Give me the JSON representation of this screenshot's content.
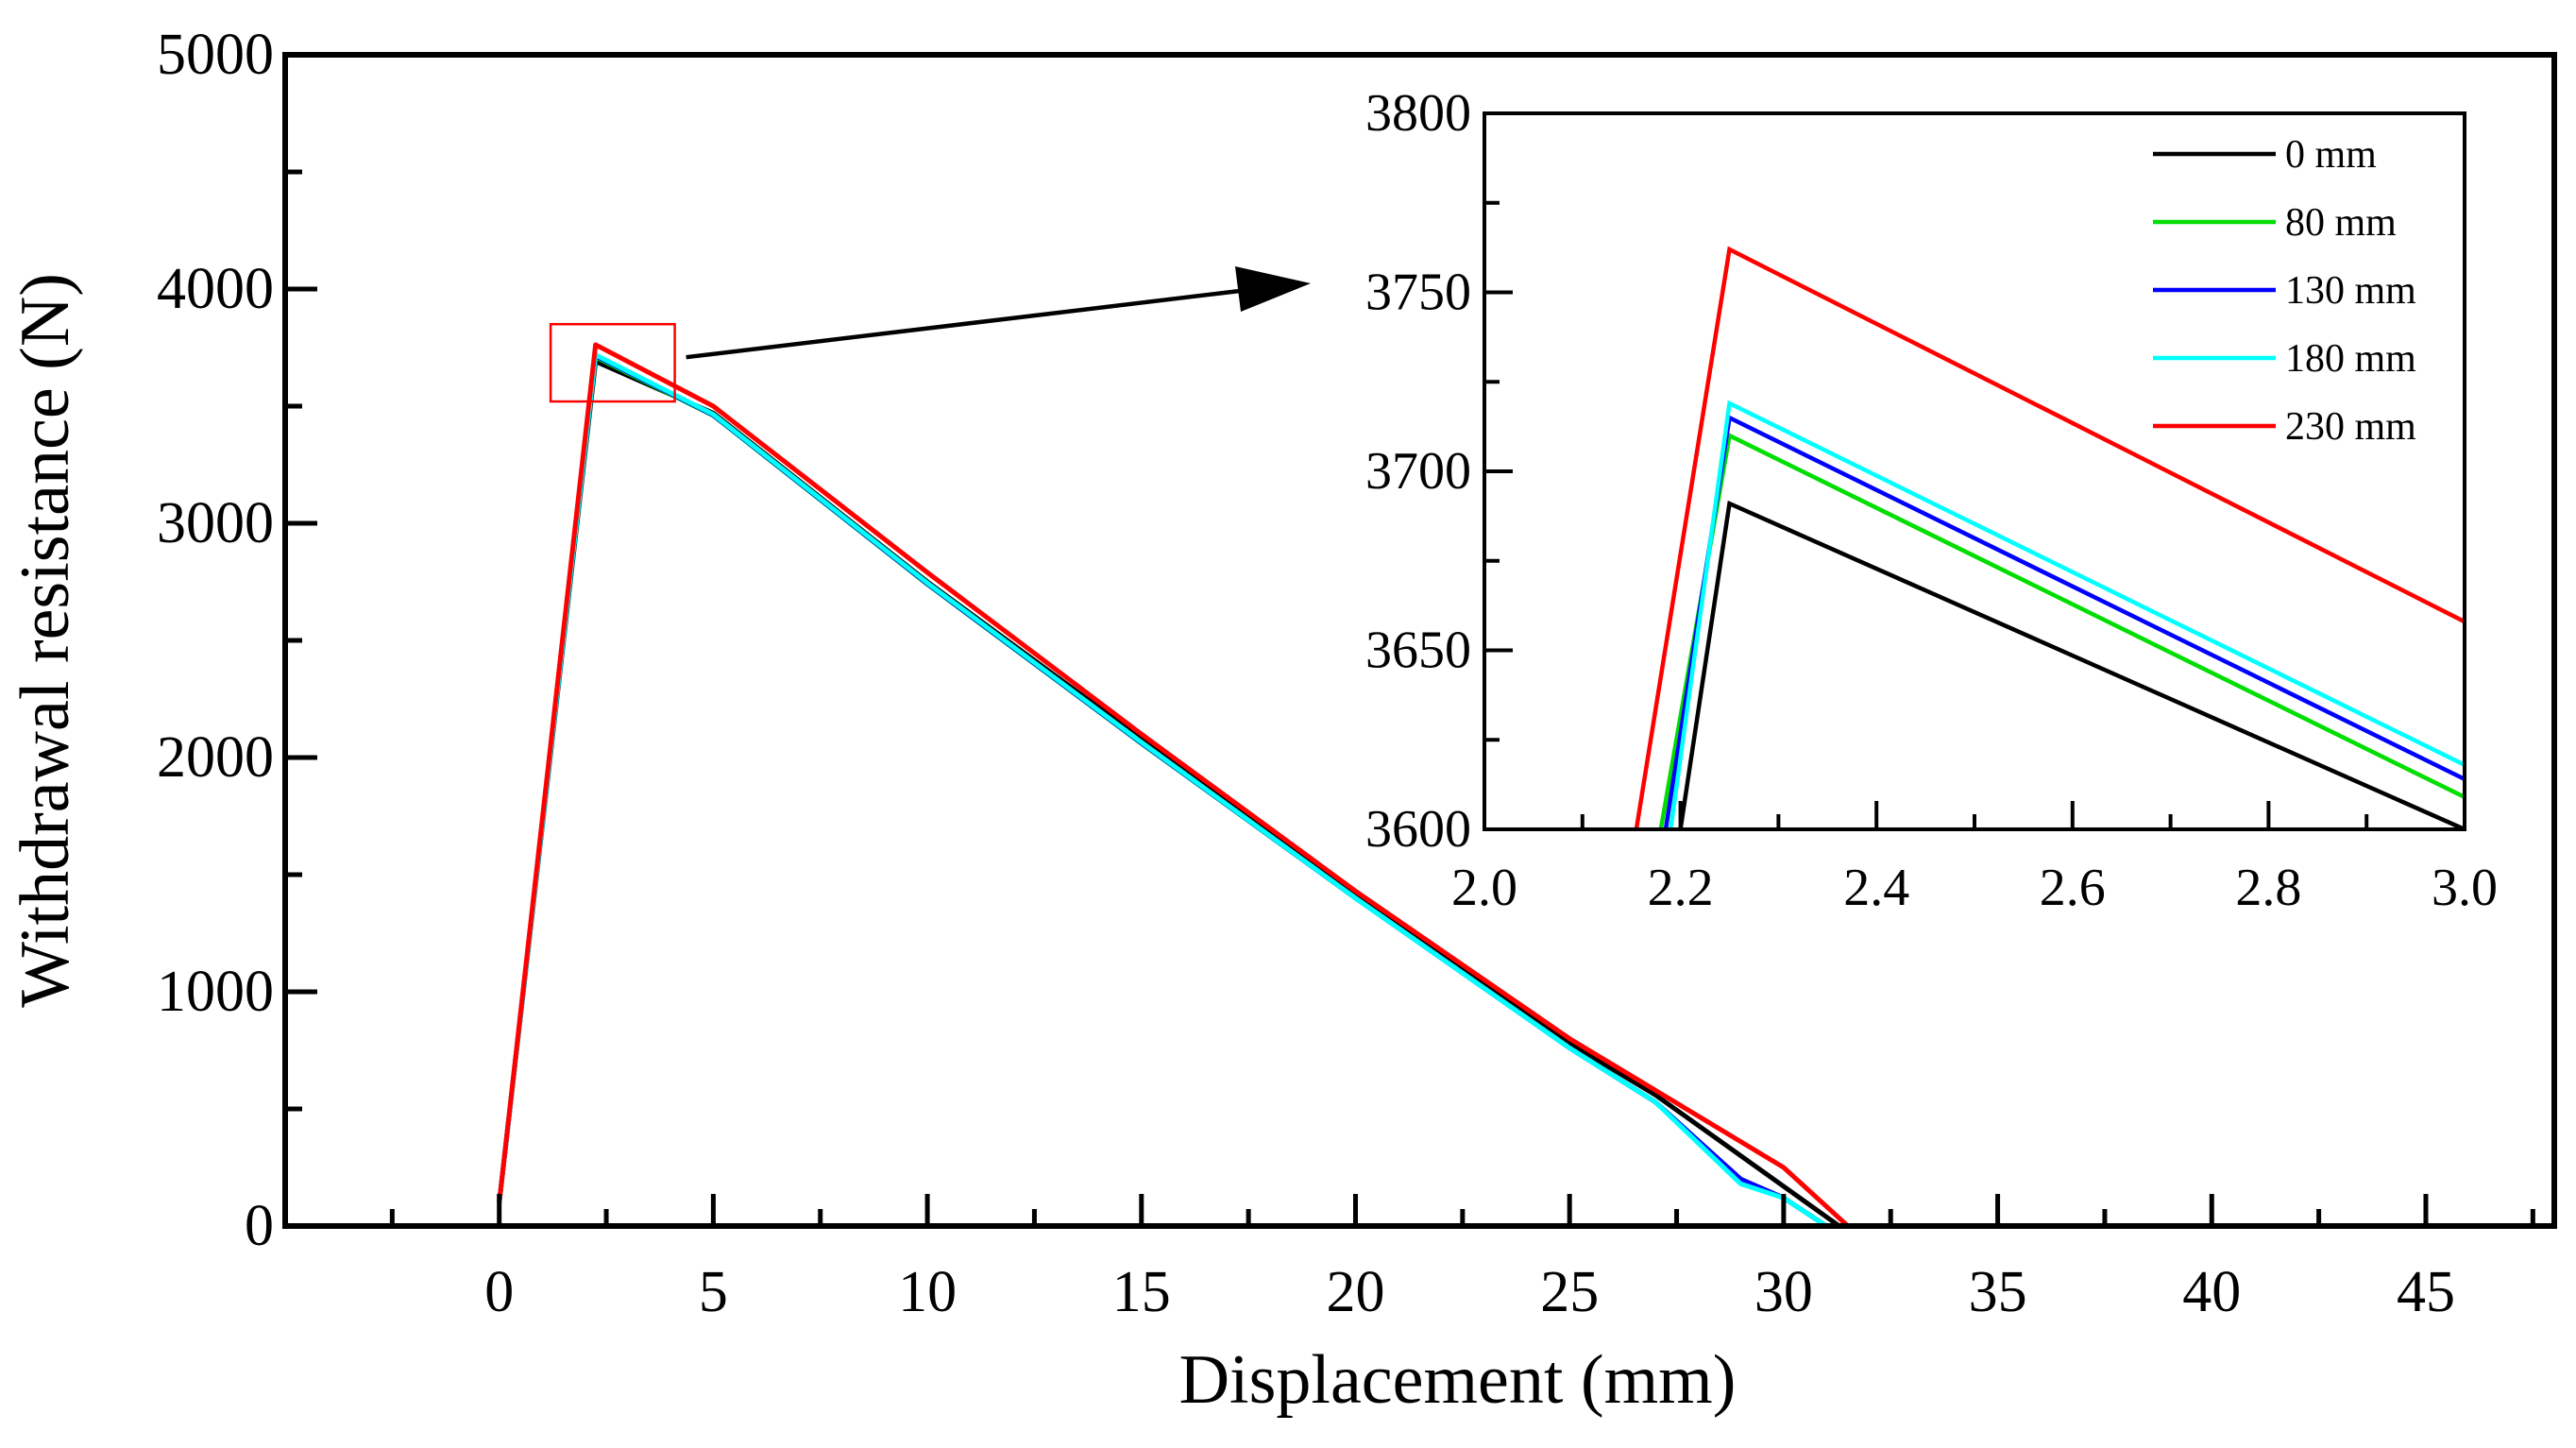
{
  "chart_data": [
    {
      "type": "line",
      "xlabel": "Displacement (mm)",
      "ylabel": "Withdrawal resistance (N)",
      "xlim": [
        -5,
        48
      ],
      "ylim": [
        0,
        5000
      ],
      "xticks": [
        0,
        5,
        10,
        15,
        20,
        25,
        30,
        35,
        40,
        45
      ],
      "yticks": [
        0,
        1000,
        2000,
        3000,
        4000,
        5000
      ],
      "series": [
        {
          "name": "0 mm",
          "color": "#000000",
          "x": [
            0,
            2.25,
            5,
            10,
            15,
            20,
            25,
            27,
            31.3
          ],
          "y": [
            100,
            3691,
            3470,
            2750,
            2080,
            1410,
            780,
            560,
            0
          ]
        },
        {
          "name": "80 mm",
          "color": "#00dd00",
          "x": [
            0,
            2.25,
            5,
            10,
            15,
            20,
            25,
            27,
            29,
            30,
            31
          ],
          "y": [
            100,
            3710,
            3460,
            2740,
            2060,
            1400,
            760,
            530,
            200,
            120,
            0
          ]
        },
        {
          "name": "130 mm",
          "color": "#0000ff",
          "x": [
            0,
            2.25,
            5,
            10,
            15,
            20,
            25,
            27,
            29,
            30,
            31
          ],
          "y": [
            100,
            3715,
            3462,
            2742,
            2062,
            1400,
            760,
            530,
            200,
            120,
            0
          ]
        },
        {
          "name": "180 mm",
          "color": "#00ffff",
          "x": [
            0,
            2.25,
            5,
            10,
            15,
            20,
            25,
            27,
            29,
            30,
            31
          ],
          "y": [
            100,
            3719,
            3465,
            2745,
            2065,
            1400,
            760,
            530,
            180,
            120,
            0
          ]
        },
        {
          "name": "230 mm",
          "color": "#ff0000",
          "x": [
            0,
            2.25,
            5,
            10,
            15,
            20,
            25,
            30,
            31.5
          ],
          "y": [
            100,
            3762,
            3500,
            2790,
            2100,
            1430,
            800,
            250,
            0
          ]
        }
      ],
      "zoom_box": {
        "x": [
          1.2,
          4.1
        ],
        "y": [
          3520,
          3850
        ],
        "color": "#ff0000"
      }
    },
    {
      "type": "line",
      "role": "inset",
      "xlim": [
        2.0,
        3.0
      ],
      "ylim": [
        3600,
        3800
      ],
      "xticks": [
        "2.0",
        "2.2",
        "2.4",
        "2.6",
        "2.8",
        "3.0"
      ],
      "yticks": [
        "3600",
        "3650",
        "3700",
        "3750",
        "3800"
      ],
      "legend_position": "top-right",
      "series": [
        {
          "name": "0 mm",
          "color": "#000000",
          "x": [
            2.2,
            2.25,
            3.0
          ],
          "y": [
            3600,
            3691,
            3600
          ]
        },
        {
          "name": "80 mm",
          "color": "#00dd00",
          "x": [
            2.18,
            2.25,
            3.0
          ],
          "y": [
            3600,
            3710,
            3609
          ]
        },
        {
          "name": "130 mm",
          "color": "#0000ff",
          "x": [
            2.185,
            2.25,
            3.0
          ],
          "y": [
            3600,
            3715,
            3614
          ]
        },
        {
          "name": "180 mm",
          "color": "#00ffff",
          "x": [
            2.19,
            2.25,
            3.0
          ],
          "y": [
            3600,
            3719,
            3618
          ]
        },
        {
          "name": "230 mm",
          "color": "#ff0000",
          "x": [
            2.155,
            2.25,
            3.0
          ],
          "y": [
            3600,
            3762,
            3658
          ]
        }
      ]
    }
  ]
}
